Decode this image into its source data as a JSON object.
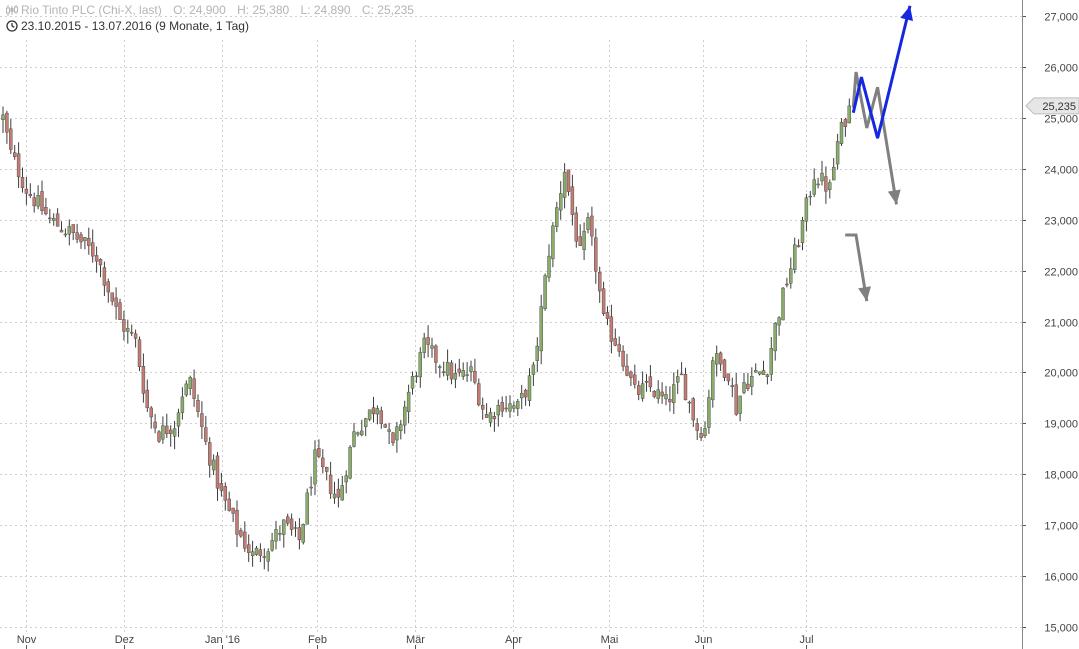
{
  "header": {
    "instrument": "Rio Tinto PLC (Chi-X, last)",
    "ohlc": [
      {
        "label": "O:",
        "value": "24,900"
      },
      {
        "label": "H:",
        "value": "25,380"
      },
      {
        "label": "L:",
        "value": "24,890"
      },
      {
        "label": "C:",
        "value": "25,235"
      }
    ],
    "period": "23.10.2015 - 13.07.2016 (9 Monate, 1 Tag)",
    "icons": [
      "candlestick-icon",
      "clock-icon"
    ]
  },
  "price_marker": "25,235",
  "colors": {
    "up_candle": "#8aac6a",
    "down_candle": "#c27c74",
    "wick": "#3d3d3d",
    "blue_path": "#1528e0",
    "gray_path": "#808080",
    "grid": "#cfcfcf",
    "marker_fill": "#e6e6e6"
  },
  "chart_data": {
    "type": "candlestick",
    "title": "",
    "xlabel": "",
    "ylabel": "",
    "ylim": [
      15000,
      27300
    ],
    "grid": true,
    "x_ticks": [
      "Nov",
      "Dez",
      "Jan '16",
      "Feb",
      "Mär",
      "Apr",
      "Mai",
      "Jun",
      "Jul"
    ],
    "y_ticks": [
      "15,000",
      "16,000",
      "17,000",
      "18,000",
      "19,000",
      "20,000",
      "21,000",
      "22,000",
      "23,000",
      "24,000",
      "25,000",
      "26,000",
      "27,000"
    ],
    "y_tick_values": [
      15000,
      16000,
      17000,
      18000,
      19000,
      20000,
      21000,
      22000,
      23000,
      24000,
      25000,
      26000,
      27000
    ],
    "last_close": 25235,
    "trend": [
      [
        0,
        25000
      ],
      [
        2,
        24300
      ],
      [
        6,
        23600
      ],
      [
        12,
        23000
      ],
      [
        18,
        22700
      ],
      [
        24,
        22300
      ],
      [
        30,
        21000
      ],
      [
        34,
        20600
      ],
      [
        37,
        19300
      ],
      [
        40,
        18800
      ],
      [
        44,
        19000
      ],
      [
        46,
        19600
      ],
      [
        48,
        19800
      ],
      [
        52,
        18600
      ],
      [
        56,
        17600
      ],
      [
        60,
        16900
      ],
      [
        64,
        16400
      ],
      [
        68,
        16600
      ],
      [
        72,
        17000
      ],
      [
        76,
        16700
      ],
      [
        80,
        18300
      ],
      [
        86,
        17500
      ],
      [
        90,
        18800
      ],
      [
        96,
        19400
      ],
      [
        100,
        18500
      ],
      [
        104,
        19600
      ],
      [
        108,
        20500
      ],
      [
        112,
        20200
      ],
      [
        116,
        19900
      ],
      [
        120,
        20000
      ],
      [
        124,
        19100
      ],
      [
        128,
        19400
      ],
      [
        132,
        19300
      ],
      [
        136,
        20000
      ],
      [
        140,
        22400
      ],
      [
        144,
        24000
      ],
      [
        146,
        23100
      ],
      [
        148,
        22300
      ],
      [
        150,
        22900
      ],
      [
        152,
        22100
      ],
      [
        154,
        21000
      ],
      [
        158,
        20500
      ],
      [
        162,
        19600
      ],
      [
        166,
        19700
      ],
      [
        170,
        19400
      ],
      [
        174,
        19900
      ],
      [
        178,
        18900
      ],
      [
        180,
        18900
      ],
      [
        182,
        20300
      ],
      [
        186,
        20000
      ],
      [
        188,
        19300
      ],
      [
        190,
        19800
      ],
      [
        194,
        20000
      ],
      [
        196,
        20100
      ],
      [
        198,
        20900
      ],
      [
        201,
        21800
      ],
      [
        204,
        22600
      ],
      [
        208,
        23900
      ],
      [
        212,
        23600
      ],
      [
        214,
        24500
      ],
      [
        216,
        25000
      ],
      [
        217,
        25235
      ]
    ],
    "projections": {
      "blue": [
        [
          25100,
          0
        ],
        [
          25800,
          3
        ],
        [
          24600,
          9
        ],
        [
          27200,
          21
        ]
      ],
      "gray_upper": [
        [
          25200,
          0
        ],
        [
          25900,
          1
        ],
        [
          24800,
          5
        ],
        [
          25600,
          9
        ],
        [
          23300,
          16
        ]
      ],
      "gray_lower": [
        [
          22700,
          0
        ],
        [
          22700,
          4
        ],
        [
          21400,
          8
        ]
      ]
    }
  }
}
